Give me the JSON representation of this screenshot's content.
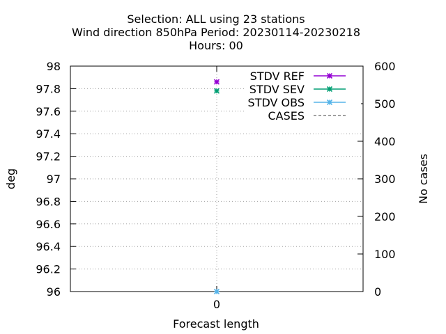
{
  "chart_data": {
    "type": "scatter",
    "title_lines": [
      "Selection: ALL using    23 stations",
      "Wind direction 850hPa   Period: 20230114-20230218",
      "Hours:  00"
    ],
    "xlabel": "Forecast length",
    "ylabel": "deg",
    "y2label": "No cases",
    "x_ticks": [
      "0"
    ],
    "ylim": [
      96,
      98
    ],
    "y_ticks": [
      "96",
      "96.2",
      "96.4",
      "96.6",
      "96.8",
      "97",
      "97.2",
      "97.4",
      "97.6",
      "97.8",
      "98"
    ],
    "y2lim": [
      0,
      600
    ],
    "y2_ticks": [
      "0",
      "100",
      "200",
      "300",
      "400",
      "500",
      "600"
    ],
    "grid": true,
    "legend_position": "top-right",
    "x": [
      0
    ],
    "series": [
      {
        "name": "STDV REF",
        "values": [
          97.86
        ],
        "color": "#9400d3",
        "marker": "star",
        "axis": "y"
      },
      {
        "name": "STDV SEV",
        "values": [
          97.78
        ],
        "color": "#009e73",
        "marker": "star",
        "axis": "y"
      },
      {
        "name": "STDV OBS",
        "values": [
          96.0
        ],
        "color": "#56b4e9",
        "marker": "star",
        "axis": "y"
      },
      {
        "name": "CASES",
        "values": [],
        "color": "#808080",
        "marker": "none",
        "dashed": true,
        "axis": "y2"
      }
    ]
  }
}
